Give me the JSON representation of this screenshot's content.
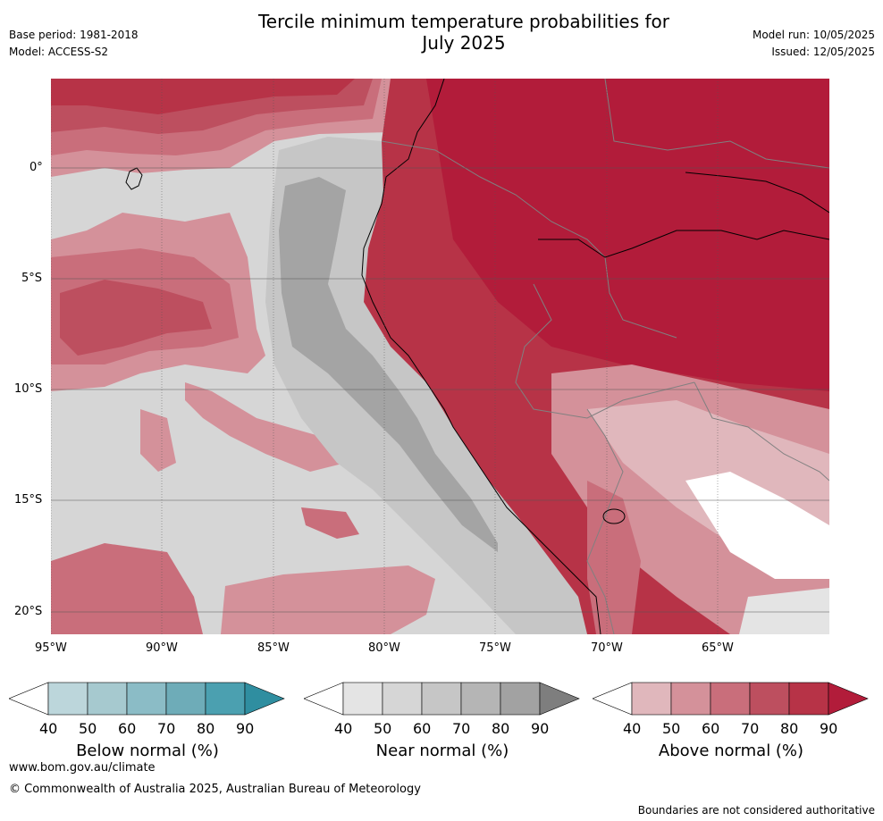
{
  "header": {
    "title_line1": "Tercile minimum temperature probabilities for",
    "title_line2": "July 2025",
    "base_period": "Base period: 1981-2018",
    "model": "Model: ACCESS-S2",
    "model_run": "Model run: 10/05/2025",
    "issued": "Issued: 12/05/2025"
  },
  "map": {
    "lat_labels": [
      "0°",
      "5°S",
      "10°S",
      "15°S",
      "20°S"
    ],
    "lon_labels": [
      "95°W",
      "90°W",
      "85°W",
      "80°W",
      "75°W",
      "70°W",
      "65°W"
    ],
    "colors": {
      "sea_near": "#d6d6d6",
      "above_40": "#e0b7bc",
      "above_50": "#d4919a",
      "above_60": "#c96e7b",
      "above_70": "#bd4f5f",
      "above_80": "#b73347",
      "above_90": "#b21c3a",
      "near_60": "#c6c6c6",
      "near_80": "#a4a4a4"
    }
  },
  "colorbars": [
    {
      "label": "Below normal (%)",
      "ticks": [
        "40",
        "50",
        "60",
        "70",
        "80",
        "90"
      ],
      "colors": [
        "#ffffff",
        "#bcd6db",
        "#a6c9cf",
        "#8bbcc6",
        "#6eacb8",
        "#4ba0b0",
        "#2f8ea0"
      ]
    },
    {
      "label": "Near normal (%)",
      "ticks": [
        "40",
        "50",
        "60",
        "70",
        "80",
        "90"
      ],
      "colors": [
        "#ffffff",
        "#e4e4e4",
        "#d6d6d6",
        "#c6c6c6",
        "#b5b5b5",
        "#a2a2a2",
        "#7e7e7e"
      ]
    },
    {
      "label": "Above normal (%)",
      "ticks": [
        "40",
        "50",
        "60",
        "70",
        "80",
        "90"
      ],
      "colors": [
        "#ffffff",
        "#e0b7bc",
        "#d4919a",
        "#c96e7b",
        "#bd4f5f",
        "#b73347",
        "#b21c3a"
      ]
    }
  ],
  "footer": {
    "website": "www.bom.gov.au/climate",
    "copyright": "© Commonwealth of Australia 2025, Australian Bureau of Meteorology",
    "disclaimer": "Boundaries are not considered authoritative"
  }
}
